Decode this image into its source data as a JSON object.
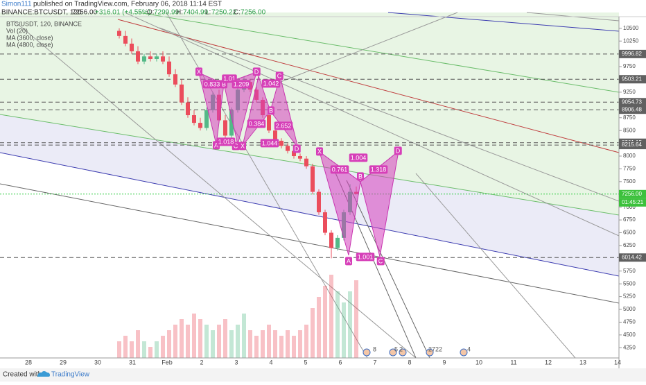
{
  "header": {
    "author": "Simon111",
    "published": "published on TradingView.com, February 06, 2018 11:14 EST",
    "symbol": "BINANCE:BTCUSDT, 120",
    "last": "7256.00",
    "change": "+316.01 (+4.55%)",
    "o_label": "O:",
    "o": "7299.99",
    "h_label": "H:",
    "h": "7404.99",
    "l_label": "L:",
    "l": "7250.22",
    "c_label": "C:",
    "c": "7256.00"
  },
  "chart_data": {
    "type": "candlestick",
    "title": "BTC/USDT, 120, BINANCE",
    "indicators": [
      "Vol (20)",
      "MA (3600, close)",
      "MA (4800, close)"
    ],
    "categories": [
      "28",
      "29",
      "30",
      "31",
      "Feb",
      "2",
      "3",
      "4",
      "5",
      "6",
      "7",
      "8",
      "9",
      "10",
      "11",
      "12",
      "13",
      "14"
    ],
    "open": [
      10450,
      10350,
      10200,
      10050,
      9850,
      9950,
      9900,
      9950,
      9850,
      9600,
      9400,
      9050,
      8800,
      8650,
      8550,
      8900,
      9200,
      8700,
      8400,
      8900,
      9300,
      9450,
      9300,
      9100,
      8800,
      8500,
      8300,
      8200,
      8100,
      8000,
      7950,
      7800,
      7300,
      6900,
      6500,
      6200,
      6400,
      6900,
      7300
    ],
    "high": [
      10500,
      10450,
      10300,
      10150,
      10000,
      10050,
      10000,
      10050,
      9950,
      9700,
      9500,
      9150,
      8900,
      8750,
      8950,
      9250,
      9300,
      8800,
      8950,
      9350,
      9550,
      9500,
      9350,
      9150,
      8850,
      8600,
      8350,
      8250,
      8150,
      8050,
      8000,
      7850,
      7350,
      6950,
      6550,
      6450,
      6950,
      7450,
      7405
    ],
    "low": [
      10300,
      10150,
      10000,
      9800,
      9800,
      9850,
      9850,
      9800,
      9550,
      9350,
      9000,
      8750,
      8600,
      8500,
      8500,
      8850,
      8650,
      8350,
      8350,
      8850,
      9250,
      9250,
      9050,
      8750,
      8450,
      8250,
      8150,
      8050,
      7950,
      7900,
      7750,
      7250,
      6850,
      6450,
      6000,
      6150,
      6350,
      6850,
      7250
    ],
    "close": [
      10350,
      10200,
      10050,
      9850,
      9950,
      9900,
      9950,
      9850,
      9600,
      9400,
      9050,
      8800,
      8650,
      8550,
      8900,
      9200,
      8700,
      8400,
      8900,
      9300,
      9450,
      9300,
      9100,
      8800,
      8500,
      8300,
      8200,
      8100,
      8000,
      7950,
      7800,
      7300,
      6900,
      6500,
      6200,
      6400,
      6900,
      7300,
      7256
    ],
    "volume": [
      3,
      4,
      3,
      5,
      3,
      2,
      3,
      4,
      5,
      6,
      7,
      6,
      8,
      7,
      6,
      5,
      6,
      7,
      5,
      6,
      8,
      5,
      4,
      5,
      6,
      5,
      4,
      5,
      4,
      5,
      6,
      9,
      11,
      13,
      15,
      12,
      10,
      12,
      14
    ],
    "up_color": "#53b987",
    "down_color": "#eb4d5c",
    "ylim": [
      4050,
      10728
    ],
    "yticks": [
      10500,
      10250,
      9750,
      9250,
      8750,
      8500,
      8000,
      7750,
      7500,
      7000,
      6750,
      6500,
      6250,
      5750,
      5500,
      5250,
      5000,
      4750,
      4500,
      4250
    ],
    "price_lines": [
      9996.82,
      9503.21,
      9054.73,
      8906.48,
      8261.15,
      8215.64,
      {
        "value": 7256,
        "label": "7256.00"
      },
      6014.42
    ],
    "countdown": "01:45:21",
    "pattern_labels": [
      "X",
      "B",
      "1.01",
      "0.833",
      "1.209",
      "D",
      "C",
      "1.042",
      "X",
      "C",
      "A",
      "1.018",
      "0.384",
      "B",
      "2.652",
      "1.044",
      "D",
      "X",
      "0.761",
      "1.004",
      "D",
      "1.318",
      "B",
      "A",
      "1.001",
      "C"
    ],
    "event_labels": [
      "8",
      "5",
      "2",
      "27",
      "22",
      "4"
    ]
  },
  "footer": {
    "created": "Created with",
    "brand": "TradingView"
  }
}
